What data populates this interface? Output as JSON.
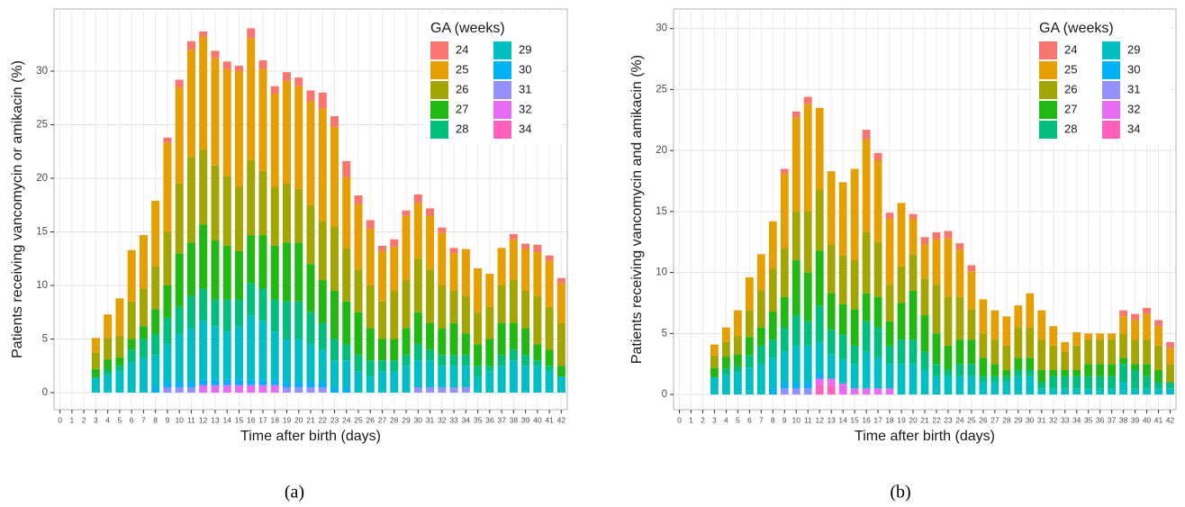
{
  "chart_data": [
    {
      "type": "bar",
      "stacked": true,
      "caption": "(a)",
      "ylabel": "Patients receiving vancomycin or amikacin (%)",
      "xlabel": "Time after birth (days)",
      "legend_title": "GA (weeks)",
      "legend": "top-right",
      "grid": true,
      "ylim": [
        -1.6,
        35.8
      ],
      "yticks": [
        0,
        5,
        10,
        15,
        20,
        25,
        30
      ],
      "categories": [
        0,
        1,
        2,
        3,
        4,
        5,
        6,
        7,
        8,
        9,
        10,
        11,
        12,
        13,
        14,
        15,
        16,
        17,
        18,
        19,
        20,
        21,
        22,
        23,
        24,
        25,
        26,
        27,
        28,
        29,
        30,
        31,
        32,
        33,
        34,
        35,
        36,
        37,
        38,
        39,
        40,
        41,
        42
      ],
      "series": [
        {
          "name": "24",
          "color": "#F8766D",
          "values": [
            0,
            0,
            0,
            0,
            0,
            0,
            0,
            0,
            0,
            0.5,
            0.7,
            0.8,
            0.5,
            0.7,
            0.7,
            0.5,
            0.9,
            0.8,
            0.7,
            0.8,
            0.8,
            1,
            1.5,
            1,
            1.5,
            0.8,
            0.8,
            0.5,
            0.7,
            0.5,
            0.8,
            0.7,
            0.5,
            0.5,
            0,
            0,
            0,
            0,
            0.5,
            0.5,
            0.7,
            0.5,
            0.5
          ]
        },
        {
          "name": "25",
          "color": "#E69F00",
          "values": [
            0,
            0,
            0,
            1.4,
            2.2,
            3.5,
            4.8,
            5.0,
            6.1,
            8.3,
            9.0,
            10.0,
            10.5,
            10.0,
            10.0,
            10.8,
            11.4,
            9.5,
            8.7,
            9.6,
            9.6,
            9.7,
            10.5,
            9.3,
            6.6,
            6.1,
            5.3,
            4.7,
            4.1,
            6.0,
            5.2,
            5.0,
            4.9,
            3.5,
            4.4,
            4.1,
            3.1,
            3.5,
            3.8,
            3.9,
            4.1,
            4.3,
            3.7
          ]
        },
        {
          "name": "26",
          "color": "#A3A500",
          "values": [
            0,
            0,
            0,
            1.5,
            2,
            2,
            3.5,
            3.5,
            4,
            5,
            6.5,
            8,
            7,
            7,
            6.5,
            6,
            7,
            6,
            5.5,
            5.5,
            5,
            5.5,
            5.5,
            6,
            5,
            4,
            4,
            3.5,
            4.5,
            4.5,
            5,
            5,
            4,
            3,
            3.5,
            3,
            3,
            3.5,
            4,
            3.5,
            4.5,
            4,
            4
          ]
        },
        {
          "name": "27",
          "color": "#22B814",
          "values": [
            0,
            0,
            0,
            0.8,
            1,
            0.8,
            1,
            1.2,
            2.3,
            3,
            5,
            5,
            6,
            5.5,
            5,
            4.5,
            4.5,
            5,
            5,
            5.5,
            5.5,
            4.5,
            4,
            4.5,
            4,
            4,
            3,
            2,
            2,
            2.5,
            3,
            2.5,
            2.5,
            3,
            2,
            2,
            2.5,
            3,
            2.5,
            2.5,
            1.5,
            1.5,
            1
          ]
        },
        {
          "name": "28",
          "color": "#00BF7D",
          "values": [
            0,
            0,
            0,
            0,
            0.5,
            0.5,
            1.2,
            1.8,
            2,
            2.5,
            2.5,
            3,
            3,
            2.5,
            3,
            2.5,
            3,
            3,
            3,
            3.5,
            3.5,
            3,
            2.5,
            2,
            1.5,
            1.5,
            1.5,
            1,
            1,
            1,
            1.5,
            1,
            1,
            1,
            1,
            1,
            0.5,
            1,
            1,
            1,
            0.5,
            0.5,
            0
          ]
        },
        {
          "name": "29",
          "color": "#00BFC4",
          "values": [
            0,
            0,
            0,
            1.4,
            1.6,
            2.0,
            2.8,
            3.2,
            3.0,
            3.5,
            4.5,
            5.0,
            5.5,
            5.0,
            4.5,
            5.0,
            6.0,
            5.5,
            4.5,
            4.0,
            4.0,
            3.5,
            3.0,
            2.5,
            2.5,
            2.0,
            1.5,
            2.0,
            2.0,
            2.5,
            2.5,
            2.5,
            2.0,
            2.0,
            2.0,
            1.5,
            2.0,
            2.5,
            3.0,
            2.5,
            2.5,
            2.0,
            1.5
          ]
        },
        {
          "name": "30",
          "color": "#00B0F6",
          "values": [
            0,
            0,
            0,
            0,
            0,
            0,
            0,
            0,
            0.5,
            0.5,
            0.5,
            0.5,
            0.5,
            0.5,
            0.5,
            0.5,
            0.5,
            0.5,
            0.5,
            0.5,
            0.5,
            0.5,
            0.5,
            0.5,
            0.5,
            0,
            0,
            0,
            0,
            0,
            0,
            0,
            0,
            0,
            0,
            0,
            0,
            0,
            0,
            0,
            0,
            0,
            0
          ]
        },
        {
          "name": "31",
          "color": "#9590FF",
          "values": [
            0,
            0,
            0,
            0,
            0,
            0,
            0,
            0,
            0,
            0.5,
            0.5,
            0.5,
            0,
            0,
            0,
            0,
            0,
            0,
            0,
            0.5,
            0.5,
            0.5,
            0.5,
            0,
            0,
            0,
            0,
            0,
            0,
            0,
            0.5,
            0.5,
            0.5,
            0.5,
            0.5,
            0,
            0,
            0,
            0,
            0,
            0,
            0,
            0
          ]
        },
        {
          "name": "32",
          "color": "#E76BF3",
          "values": [
            0,
            0,
            0,
            0,
            0,
            0,
            0,
            0,
            0,
            0,
            0,
            0,
            0.7,
            0.7,
            0.7,
            0.7,
            0.7,
            0.7,
            0.7,
            0,
            0,
            0,
            0,
            0,
            0,
            0,
            0,
            0,
            0,
            0,
            0,
            0,
            0,
            0,
            0,
            0,
            0,
            0,
            0,
            0,
            0,
            0,
            0
          ]
        },
        {
          "name": "34",
          "color": "#FF62BC",
          "values": [
            0,
            0,
            0,
            0,
            0,
            0,
            0,
            0,
            0,
            0,
            0,
            0,
            0,
            0,
            0,
            0,
            0,
            0,
            0,
            0,
            0,
            0,
            0,
            0,
            0,
            0,
            0,
            0,
            0,
            0,
            0,
            0,
            0,
            0,
            0,
            0,
            0,
            0,
            0,
            0,
            0,
            0,
            0
          ]
        }
      ]
    },
    {
      "type": "bar",
      "stacked": true,
      "caption": "(b)",
      "ylabel": "Patients receiving vancomycin and amikacin (%)",
      "xlabel": "Time after birth (days)",
      "legend_title": "GA (weeks)",
      "legend": "top-right",
      "grid": true,
      "ylim": [
        -1.25,
        31.6
      ],
      "yticks": [
        0,
        5,
        10,
        15,
        20,
        25,
        30
      ],
      "categories": [
        0,
        1,
        2,
        3,
        4,
        5,
        6,
        7,
        8,
        9,
        10,
        11,
        12,
        13,
        14,
        15,
        16,
        17,
        18,
        19,
        20,
        21,
        22,
        23,
        24,
        25,
        26,
        27,
        28,
        29,
        30,
        31,
        32,
        33,
        34,
        35,
        36,
        37,
        38,
        39,
        40,
        41,
        42
      ],
      "series": [
        {
          "name": "24",
          "color": "#F8766D",
          "values": [
            0,
            0,
            0,
            0,
            0,
            0,
            0,
            0,
            0,
            0.4,
            0.5,
            0.6,
            0,
            0,
            0,
            0,
            0.8,
            0.6,
            0.5,
            0,
            0.4,
            0.6,
            0.6,
            0.6,
            0.5,
            0.5,
            0,
            0,
            0,
            0,
            0,
            0,
            0,
            0,
            0,
            0,
            0,
            0,
            0.5,
            0.5,
            0.5,
            0.5,
            0.5
          ]
        },
        {
          "name": "25",
          "color": "#E69F00",
          "values": [
            0,
            0,
            0,
            0.9,
            1.2,
            2.1,
            2.7,
            3.0,
            3.9,
            6.1,
            7.7,
            8.8,
            6.7,
            6.0,
            6.0,
            7.5,
            7.6,
            6.7,
            5.4,
            5.2,
            2.9,
            2.8,
            3.7,
            4.8,
            3.9,
            3.1,
            2.8,
            2.4,
            2.4,
            1.8,
            2.8,
            2.4,
            1.6,
            0.8,
            1.1,
            0.5,
            0.5,
            0.5,
            1.4,
            1.6,
            2.1,
            1.6,
            1.3
          ]
        },
        {
          "name": "26",
          "color": "#A3A500",
          "values": [
            0,
            0,
            0,
            1,
            1.2,
            1.5,
            2.2,
            3,
            3.5,
            4,
            4,
            5,
            5,
            4,
            4,
            4,
            5,
            4.5,
            3,
            3,
            3,
            3,
            4,
            4,
            3.5,
            2.5,
            2,
            2,
            2,
            2.5,
            2.5,
            2.5,
            2,
            1.5,
            2,
            2,
            2,
            2,
            2,
            2,
            2,
            2,
            1.5
          ]
        },
        {
          "name": "27",
          "color": "#22B814",
          "values": [
            0,
            0,
            0,
            0.8,
            1,
            1,
            1.5,
            1.5,
            2.3,
            2.5,
            4.5,
            4,
            4.5,
            3,
            2.5,
            3,
            2.3,
            2.5,
            2,
            3,
            4,
            3,
            2.5,
            2,
            2,
            2,
            1.5,
            1,
            0.5,
            1,
            1,
            1,
            0.5,
            0.5,
            0.5,
            1,
            1,
            1,
            0.5,
            0.5,
            1,
            1,
            0
          ]
        },
        {
          "name": "28",
          "color": "#00BF7D",
          "values": [
            0,
            0,
            0,
            0,
            0.5,
            0.5,
            1,
            1.5,
            1.5,
            2,
            2.5,
            2,
            3,
            2,
            2,
            1.5,
            2.5,
            2.5,
            1.5,
            2,
            2,
            1.5,
            1,
            0.5,
            1,
            1,
            0.5,
            0.5,
            0.5,
            0.5,
            0.5,
            0.5,
            1,
            1,
            1,
            1,
            1,
            1,
            1.5,
            1.5,
            1,
            0.5,
            0.5
          ]
        },
        {
          "name": "29",
          "color": "#00BFC4",
          "values": [
            0,
            0,
            0,
            1.4,
            1.6,
            1.8,
            2.2,
            2.5,
            2.5,
            2.5,
            3,
            3,
            2.5,
            2,
            2,
            2,
            3,
            2.5,
            2,
            2.5,
            2.5,
            2,
            1.5,
            1.5,
            1.5,
            1.5,
            1,
            1,
            1,
            1.5,
            1.5,
            0.5,
            0.5,
            0.5,
            0.5,
            0.5,
            0.5,
            0.5,
            1,
            0.5,
            0.5,
            0.5,
            0.5
          ]
        },
        {
          "name": "30",
          "color": "#00B0F6",
          "values": [
            0,
            0,
            0,
            0,
            0,
            0,
            0,
            0,
            0.5,
            0.5,
            0.5,
            0.5,
            0.5,
            0,
            0,
            0,
            0,
            0,
            0,
            0,
            0,
            0,
            0,
            0,
            0,
            0,
            0,
            0,
            0,
            0,
            0,
            0,
            0,
            0,
            0,
            0,
            0,
            0,
            0,
            0,
            0,
            0,
            0
          ]
        },
        {
          "name": "31",
          "color": "#9590FF",
          "values": [
            0,
            0,
            0,
            0,
            0,
            0,
            0,
            0,
            0,
            0.5,
            0.5,
            0.5,
            0,
            0,
            0,
            0,
            0,
            0,
            0,
            0,
            0,
            0,
            0,
            0,
            0,
            0,
            0,
            0,
            0,
            0,
            0,
            0,
            0,
            0,
            0,
            0,
            0,
            0,
            0,
            0,
            0,
            0,
            0
          ]
        },
        {
          "name": "32",
          "color": "#E76BF3",
          "values": [
            0,
            0,
            0,
            0,
            0,
            0,
            0,
            0,
            0,
            0,
            0,
            0,
            0.5,
            0.5,
            0.9,
            0.5,
            0.5,
            0.5,
            0.5,
            0,
            0,
            0,
            0,
            0,
            0,
            0,
            0,
            0,
            0,
            0,
            0,
            0,
            0,
            0,
            0,
            0,
            0,
            0,
            0,
            0,
            0,
            0,
            0
          ]
        },
        {
          "name": "34",
          "color": "#FF62BC",
          "values": [
            0,
            0,
            0,
            0,
            0,
            0,
            0,
            0,
            0,
            0,
            0,
            0,
            0.8,
            0.8,
            0,
            0,
            0,
            0,
            0,
            0,
            0,
            0,
            0,
            0,
            0,
            0,
            0,
            0,
            0,
            0,
            0,
            0,
            0,
            0,
            0,
            0,
            0,
            0,
            0,
            0,
            0,
            0,
            0
          ]
        }
      ]
    }
  ]
}
